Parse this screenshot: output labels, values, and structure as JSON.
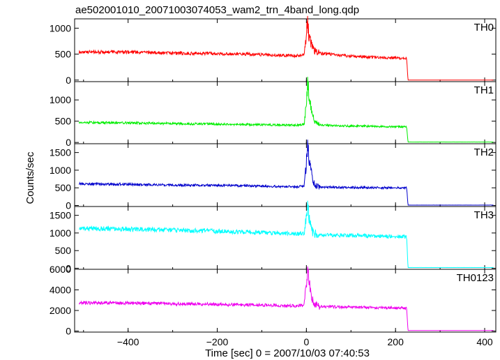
{
  "chart_data": {
    "type": "line",
    "title": "ae502001010_20071003074053_wam2_trn_4band_long.qdp",
    "xlabel": "Time [sec] 0 = 2007/10/03 07:40:53",
    "ylabel": "Counts/sec",
    "xlim": [
      -520,
      425
    ],
    "x_ticks": [
      -400,
      -200,
      0,
      200,
      400
    ],
    "x_tick_labels": [
      "−400",
      "−200",
      "0",
      "200",
      "400"
    ],
    "grid": false,
    "panels": [
      {
        "name": "TH0",
        "color": "#ff0000",
        "ylim": [
          -30,
          1180
        ],
        "y_ticks": [
          0,
          500,
          1000
        ],
        "y_tick_labels": [
          "0",
          "500",
          "1000"
        ],
        "series": {
          "name": "TH0",
          "x": [
            -510,
            -400,
            -300,
            -200,
            -100,
            -20,
            -5,
            0,
            2,
            5,
            10,
            15,
            20,
            30,
            50,
            100,
            150,
            200,
            225,
            228,
            300,
            400,
            420
          ],
          "y": [
            540,
            540,
            520,
            510,
            490,
            470,
            480,
            800,
            1150,
            900,
            700,
            620,
            560,
            520,
            500,
            460,
            440,
            430,
            420,
            0,
            0,
            0,
            0
          ]
        }
      },
      {
        "name": "TH1",
        "color": "#00ee00",
        "ylim": [
          -30,
          1430
        ],
        "y_ticks": [
          0,
          500,
          1000
        ],
        "y_tick_labels": [
          "0",
          "500",
          "1000"
        ],
        "series": {
          "name": "TH1",
          "x": [
            -510,
            -400,
            -300,
            -200,
            -100,
            -20,
            -5,
            0,
            3,
            6,
            10,
            15,
            20,
            30,
            50,
            100,
            150,
            200,
            225,
            228,
            300,
            400,
            420
          ],
          "y": [
            470,
            460,
            445,
            430,
            415,
            410,
            430,
            900,
            1400,
            1100,
            800,
            600,
            480,
            420,
            400,
            385,
            380,
            370,
            370,
            10,
            10,
            10,
            10
          ]
        }
      },
      {
        "name": "TH2",
        "color": "#0000cc",
        "ylim": [
          -30,
          1750
        ],
        "y_ticks": [
          0,
          500,
          1000,
          1500
        ],
        "y_tick_labels": [
          "0",
          "500",
          "1000",
          "1500"
        ],
        "series": {
          "name": "TH2",
          "x": [
            -510,
            -400,
            -300,
            -200,
            -100,
            -20,
            -5,
            0,
            3,
            6,
            10,
            15,
            20,
            30,
            50,
            100,
            150,
            200,
            225,
            228,
            300,
            400,
            420
          ],
          "y": [
            610,
            600,
            580,
            570,
            550,
            530,
            550,
            1200,
            1700,
            1300,
            1000,
            700,
            560,
            530,
            520,
            510,
            505,
            500,
            500,
            10,
            10,
            10,
            10
          ]
        }
      },
      {
        "name": "TH3",
        "color": "#00ffff",
        "ylim": [
          -30,
          1750
        ],
        "y_ticks": [
          0,
          500,
          1000,
          1500
        ],
        "y_tick_labels": [
          "0",
          "500",
          "1000",
          "1500"
        ],
        "series": {
          "name": "TH3",
          "x": [
            -510,
            -400,
            -300,
            -200,
            -100,
            -20,
            -5,
            0,
            3,
            6,
            10,
            15,
            20,
            30,
            50,
            100,
            150,
            200,
            225,
            228,
            300,
            400,
            420
          ],
          "y": [
            1130,
            1110,
            1080,
            1050,
            1010,
            980,
            1000,
            1400,
            1750,
            1400,
            1150,
            1000,
            960,
            950,
            940,
            930,
            910,
            900,
            890,
            20,
            20,
            20,
            20
          ]
        }
      },
      {
        "name": "TH0123",
        "color": "#ee00ee",
        "ylim": [
          -100,
          6000
        ],
        "y_ticks": [
          0,
          2000,
          4000,
          6000
        ],
        "y_tick_labels": [
          "0",
          "2000",
          "4000",
          "6000"
        ],
        "series": {
          "name": "TH0123",
          "x": [
            -510,
            -400,
            -300,
            -200,
            -100,
            -20,
            -5,
            0,
            3,
            6,
            10,
            15,
            20,
            30,
            50,
            100,
            150,
            200,
            225,
            228,
            300,
            400,
            420
          ],
          "y": [
            2750,
            2720,
            2650,
            2600,
            2520,
            2450,
            2500,
            4500,
            5800,
            4800,
            3500,
            2900,
            2500,
            2400,
            2380,
            2320,
            2280,
            2250,
            2230,
            50,
            50,
            50,
            50
          ]
        }
      }
    ]
  }
}
